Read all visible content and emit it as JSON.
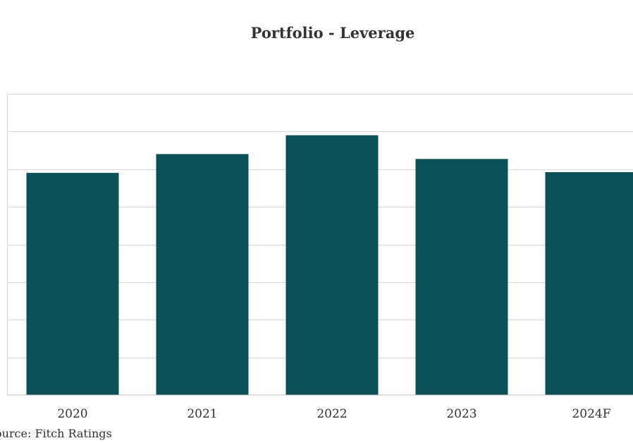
{
  "chart_data": {
    "type": "bar",
    "title": "Portfolio - Leverage",
    "categories": [
      "2020",
      "2021",
      "2022",
      "2023",
      "2024F"
    ],
    "values": [
      5.9,
      6.4,
      6.9,
      6.27,
      5.92
    ],
    "ylim": [
      0,
      8
    ],
    "gridlines": [
      0,
      1,
      2,
      3,
      4,
      5,
      6,
      7,
      8
    ],
    "grid": true,
    "bar_color": "#0a5056",
    "grid_color": "#d9d9d9",
    "xlabel": "",
    "ylabel": ""
  },
  "source": "Source: Fitch Ratings"
}
